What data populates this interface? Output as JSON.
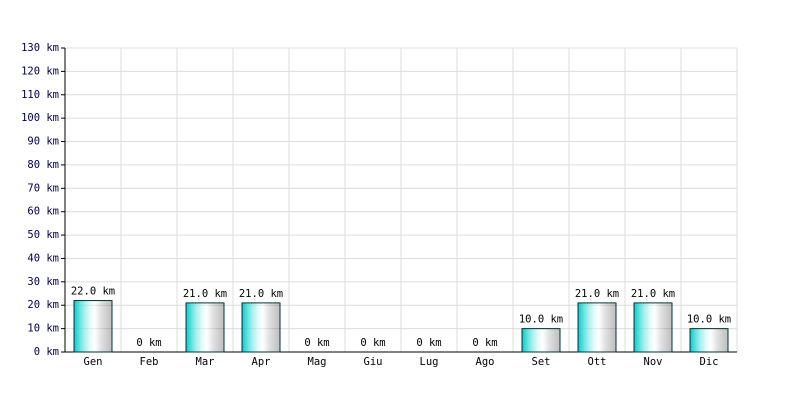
{
  "chart_data": {
    "type": "bar",
    "categories": [
      "Gen",
      "Feb",
      "Mar",
      "Apr",
      "Mag",
      "Giu",
      "Lug",
      "Ago",
      "Set",
      "Ott",
      "Nov",
      "Dic"
    ],
    "values": [
      22,
      0,
      21,
      21,
      0,
      0,
      0,
      0,
      10,
      21,
      21,
      10
    ],
    "value_labels": [
      "22.0 km",
      "0 km",
      "21.0 km",
      "21.0 km",
      "0 km",
      "0 km",
      "0 km",
      "0 km",
      "10.0 km",
      "21.0 km",
      "21.0 km",
      "10.0 km"
    ],
    "color": "#00cccc",
    "ylim": [
      0,
      130
    ],
    "yticks": [
      {
        "value": 0,
        "label": "0 km"
      },
      {
        "value": 10,
        "label": "10 km"
      },
      {
        "value": 20,
        "label": "20 km"
      },
      {
        "value": 30,
        "label": "30 km"
      },
      {
        "value": 40,
        "label": "40 km"
      },
      {
        "value": 50,
        "label": "50 km"
      },
      {
        "value": 60,
        "label": "60 km"
      },
      {
        "value": 70,
        "label": "70 km"
      },
      {
        "value": 80,
        "label": "80 km"
      },
      {
        "value": 90,
        "label": "90 km"
      },
      {
        "value": 100,
        "label": "100 km"
      },
      {
        "value": 110,
        "label": "110 km"
      },
      {
        "value": 120,
        "label": "120 km"
      },
      {
        "value": 130,
        "label": "130 km"
      }
    ],
    "grid": true
  }
}
